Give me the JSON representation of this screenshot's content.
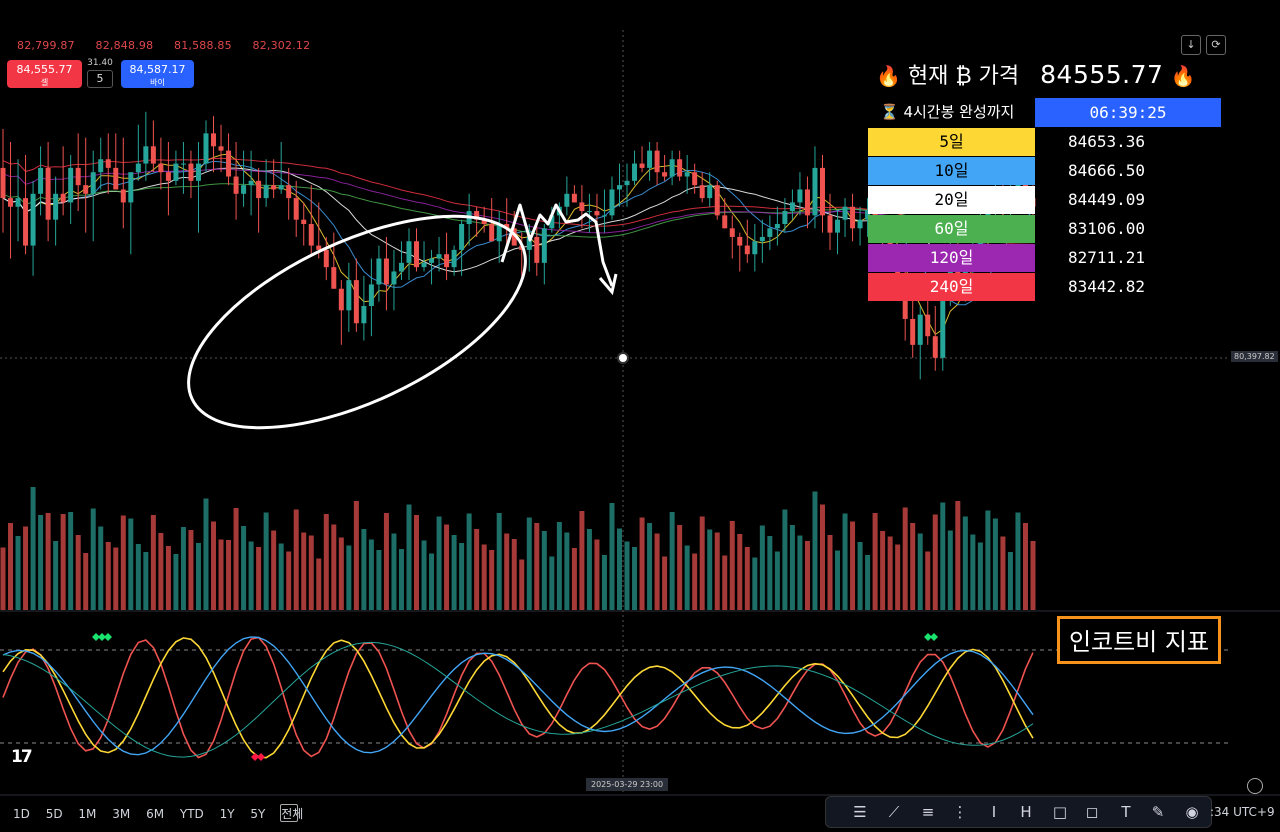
{
  "header": {
    "ohlc": [
      "82,799.87",
      "82,848.98",
      "81,588.85",
      "82,302.12"
    ],
    "sell_price": "84,555.77",
    "sell_label": "셀",
    "buy_price": "84,587.17",
    "buy_label": "바이",
    "spread": "31.40",
    "quantity": "5",
    "download_icon": "arrow-down-icon",
    "refresh_icon": "refresh-icon"
  },
  "overlay": {
    "title": "현재 ₿ 가격",
    "price": "84555.77",
    "fire": "🔥",
    "timer_label": "⏳ 4시간봉 완성까지",
    "timer_value": "06:39:25",
    "moving_averages": [
      {
        "label": "5일",
        "value": "84653.36",
        "color": "#fdd835",
        "text_color": "#000000"
      },
      {
        "label": "10일",
        "value": "84666.50",
        "color": "#42a5f5",
        "text_color": "#000000"
      },
      {
        "label": "20일",
        "value": "84449.09",
        "color": "#ffffff",
        "text_color": "#000000"
      },
      {
        "label": "60일",
        "value": "83106.00",
        "color": "#4caf50",
        "text_color": "#ffffff"
      },
      {
        "label": "120일",
        "value": "82711.21",
        "color": "#9c27b0",
        "text_color": "#ffffff"
      },
      {
        "label": "240일",
        "value": "83442.82",
        "color": "#f23645",
        "text_color": "#ffffff"
      }
    ]
  },
  "axis": {
    "price_tag": "80,397.82",
    "date_tag": "2025-03-29 23:00"
  },
  "indicator_label": "인코트비 지표",
  "bottom": {
    "ranges": [
      "1D",
      "5D",
      "1M",
      "3M",
      "6M",
      "YTD",
      "1Y",
      "5Y",
      "전체"
    ],
    "clock": ":34 UTC+9",
    "tools": [
      "list-icon",
      "line-icon",
      "fib-icon",
      "pattern-icon",
      "text-cursor-icon",
      "measure-icon",
      "rectangle-icon",
      "callout-icon",
      "text-icon",
      "brush-icon",
      "eye-icon"
    ]
  },
  "chart_data": {
    "type": "line",
    "candles": [
      [
        0,
        86.0,
        86.9,
        84.5,
        85.3
      ],
      [
        1,
        85.3,
        86.6,
        83.9,
        85.1
      ],
      [
        2,
        85.1,
        86.2,
        84.3,
        85.3
      ],
      [
        3,
        85.3,
        86.3,
        84.0,
        84.2
      ],
      [
        4,
        84.2,
        85.7,
        83.5,
        85.4
      ],
      [
        5,
        85.4,
        86.5,
        84.9,
        86.0
      ],
      [
        6,
        86.0,
        86.6,
        84.3,
        84.8
      ],
      [
        7,
        84.8,
        85.8,
        84.2,
        85.4
      ],
      [
        8,
        85.4,
        86.5,
        84.9,
        85.2
      ],
      [
        9,
        85.2,
        86.3,
        84.7,
        86.0
      ],
      [
        10,
        86.0,
        86.8,
        85.0,
        85.6
      ],
      [
        11,
        85.6,
        86.7,
        84.5,
        85.4
      ],
      [
        12,
        85.4,
        86.4,
        84.3,
        85.9
      ],
      [
        13,
        85.9,
        86.7,
        85.5,
        86.2
      ],
      [
        14,
        86.2,
        86.8,
        85.4,
        86.0
      ],
      [
        15,
        86.0,
        86.8,
        85.5,
        85.5
      ],
      [
        16,
        85.5,
        86.7,
        84.6,
        85.2
      ],
      [
        17,
        85.2,
        85.9,
        84.0,
        85.9
      ],
      [
        18,
        85.9,
        87.0,
        85.7,
        86.1
      ],
      [
        19,
        86.1,
        87.3,
        85.7,
        86.5
      ],
      [
        20,
        86.5,
        87.1,
        85.9,
        86.1
      ],
      [
        21,
        86.1,
        86.7,
        85.5,
        85.9
      ],
      [
        22,
        85.9,
        86.6,
        84.9,
        85.7
      ],
      [
        23,
        85.7,
        86.4,
        85.6,
        86.1
      ],
      [
        24,
        86.1,
        86.6,
        85.4,
        86.1
      ],
      [
        25,
        86.1,
        86.4,
        85.3,
        85.7
      ],
      [
        26,
        85.7,
        86.6,
        84.5,
        86.1
      ],
      [
        27,
        86.1,
        87.1,
        85.9,
        86.8
      ],
      [
        28,
        86.8,
        87.2,
        85.9,
        86.5
      ],
      [
        29,
        86.5,
        87.0,
        85.9,
        86.4
      ],
      [
        30,
        86.4,
        86.8,
        85.6,
        85.8
      ],
      [
        31,
        85.8,
        86.6,
        84.8,
        85.4
      ],
      [
        32,
        85.4,
        86.4,
        85.1,
        85.6
      ],
      [
        33,
        85.6,
        86.4,
        84.9,
        85.7
      ],
      [
        34,
        85.7,
        86.0,
        84.5,
        85.3
      ],
      [
        35,
        85.3,
        86.2,
        85.1,
        85.6
      ],
      [
        36,
        85.6,
        86.2,
        85.3,
        85.5
      ],
      [
        37,
        85.5,
        86.6,
        85.4,
        85.6
      ],
      [
        38,
        85.6,
        86.0,
        84.8,
        85.3
      ],
      [
        39,
        85.3,
        85.7,
        84.4,
        84.8
      ],
      [
        40,
        84.8,
        85.2,
        84.2,
        84.7
      ],
      [
        41,
        84.7,
        85.6,
        84.0,
        84.2
      ],
      [
        42,
        84.2,
        85.2,
        83.9,
        84.1
      ],
      [
        43,
        84.1,
        84.4,
        83.4,
        83.7
      ],
      [
        44,
        83.7,
        84.5,
        83.2,
        83.2
      ],
      [
        45,
        83.2,
        83.4,
        81.9,
        82.7
      ],
      [
        46,
        82.7,
        83.8,
        82.2,
        83.4
      ],
      [
        47,
        83.4,
        83.9,
        82.2,
        82.4
      ],
      [
        48,
        82.4,
        83.5,
        82.0,
        82.8
      ],
      [
        49,
        82.8,
        83.9,
        82.1,
        83.3
      ],
      [
        50,
        83.3,
        84.2,
        82.9,
        83.9
      ],
      [
        51,
        83.9,
        84.4,
        82.7,
        83.3
      ],
      [
        52,
        83.3,
        84.1,
        82.7,
        83.6
      ],
      [
        53,
        83.6,
        84.3,
        83.4,
        83.8
      ],
      [
        54,
        83.8,
        84.6,
        83.4,
        84.3
      ],
      [
        55,
        84.3,
        84.6,
        83.6,
        83.7
      ],
      [
        56,
        83.7,
        84.3,
        83.6,
        83.8
      ],
      [
        57,
        83.8,
        84.1,
        83.3,
        83.9
      ],
      [
        58,
        83.9,
        84.4,
        83.6,
        84.0
      ],
      [
        59,
        84.0,
        84.5,
        83.4,
        83.7
      ],
      [
        60,
        83.7,
        84.2,
        83.5,
        84.1
      ],
      [
        61,
        84.1,
        84.8,
        83.5,
        84.7
      ],
      [
        62,
        84.7,
        85.4,
        84.2,
        85.0
      ],
      [
        63,
        85.0,
        85.1,
        84.4,
        84.8
      ],
      [
        64,
        84.8,
        85.1,
        84.5,
        84.7
      ],
      [
        65,
        84.7,
        85.3,
        84.3,
        84.3
      ],
      [
        66,
        84.3,
        85.0,
        83.8,
        84.7
      ],
      [
        67,
        84.7,
        85.3,
        84.2,
        84.6
      ],
      [
        68,
        84.6,
        85.0,
        84.2,
        84.2
      ],
      [
        69,
        84.2,
        84.5,
        83.4,
        84.1
      ],
      [
        70,
        84.1,
        84.7,
        83.6,
        84.4
      ],
      [
        71,
        84.4,
        84.8,
        83.5,
        83.8
      ],
      [
        72,
        83.8,
        84.7,
        83.3,
        84.6
      ],
      [
        73,
        84.6,
        85.1,
        84.5,
        84.9
      ],
      [
        74,
        84.9,
        85.2,
        84.6,
        85.1
      ],
      [
        75,
        85.1,
        85.8,
        84.9,
        85.4
      ],
      [
        76,
        85.4,
        85.6,
        85.2,
        85.2
      ],
      [
        77,
        85.2,
        85.6,
        84.6,
        85.0
      ],
      [
        78,
        85.0,
        85.4,
        84.5,
        85.0
      ],
      [
        79,
        85.0,
        85.4,
        84.6,
        84.9
      ],
      [
        80,
        84.9,
        85.5,
        84.5,
        84.9
      ],
      [
        81,
        84.9,
        85.8,
        84.8,
        85.5
      ],
      [
        82,
        85.5,
        86.1,
        85.1,
        85.6
      ],
      [
        83,
        85.6,
        86.1,
        85.1,
        85.7
      ],
      [
        84,
        85.7,
        86.4,
        85.6,
        86.1
      ],
      [
        85,
        86.1,
        86.5,
        85.9,
        86.0
      ],
      [
        86,
        86.0,
        86.6,
        85.7,
        86.4
      ],
      [
        87,
        86.4,
        86.6,
        85.6,
        85.9
      ],
      [
        88,
        85.9,
        86.3,
        85.7,
        85.8
      ],
      [
        89,
        85.8,
        86.4,
        85.6,
        86.2
      ],
      [
        90,
        86.2,
        86.4,
        85.7,
        85.8
      ],
      [
        91,
        85.8,
        86.3,
        85.4,
        85.9
      ],
      [
        92,
        85.9,
        86.1,
        85.4,
        85.6
      ],
      [
        93,
        85.6,
        85.9,
        85.2,
        85.3
      ],
      [
        94,
        85.3,
        85.9,
        85.1,
        85.6
      ],
      [
        95,
        85.6,
        85.7,
        84.8,
        84.9
      ],
      [
        96,
        84.9,
        85.3,
        84.6,
        84.6
      ],
      [
        97,
        84.6,
        84.9,
        83.9,
        84.4
      ],
      [
        98,
        84.4,
        84.5,
        83.6,
        84.2
      ],
      [
        99,
        84.2,
        84.8,
        83.8,
        84.0
      ],
      [
        100,
        84.0,
        84.7,
        83.6,
        84.3
      ],
      [
        101,
        84.3,
        84.8,
        83.8,
        84.4
      ],
      [
        102,
        84.4,
        84.9,
        84.1,
        84.6
      ],
      [
        103,
        84.6,
        85.1,
        84.2,
        84.7
      ],
      [
        104,
        84.7,
        85.3,
        84.5,
        85.0
      ],
      [
        105,
        85.0,
        85.5,
        84.8,
        85.2
      ],
      [
        106,
        85.2,
        85.9,
        84.9,
        85.5
      ],
      [
        107,
        85.5,
        85.8,
        84.6,
        84.9
      ],
      [
        108,
        84.9,
        86.5,
        84.6,
        86.0
      ],
      [
        109,
        86.0,
        86.3,
        84.5,
        84.9
      ],
      [
        110,
        84.9,
        85.4,
        84.1,
        84.5
      ],
      [
        111,
        84.5,
        85.0,
        84.0,
        84.8
      ],
      [
        112,
        84.8,
        85.3,
        84.4,
        85.1
      ],
      [
        113,
        85.1,
        85.4,
        84.3,
        84.6
      ],
      [
        114,
        84.6,
        85.1,
        84.2,
        84.8
      ],
      [
        115,
        84.8,
        85.3,
        84.4,
        85.0
      ],
      [
        116,
        85.0,
        85.2,
        84.3,
        84.6
      ],
      [
        117,
        84.6,
        84.9,
        84.1,
        84.4
      ],
      [
        118,
        84.4,
        84.7,
        83.7,
        83.9
      ],
      [
        119,
        83.9,
        84.1,
        83.0,
        83.2
      ],
      [
        120,
        83.2,
        83.7,
        82.0,
        82.5
      ],
      [
        121,
        82.5,
        83.2,
        81.6,
        81.9
      ],
      [
        122,
        81.9,
        82.8,
        81.1,
        82.6
      ],
      [
        123,
        82.6,
        83.3,
        81.9,
        82.1
      ],
      [
        124,
        82.1,
        82.8,
        81.3,
        81.6
      ],
      [
        125,
        81.6,
        83.4,
        81.3,
        83.1
      ],
      [
        126,
        83.1,
        84.3,
        82.8,
        84.0
      ],
      [
        127,
        84.0,
        84.6,
        83.2,
        83.4
      ],
      [
        128,
        83.4,
        84.2,
        82.9,
        83.9
      ],
      [
        129,
        83.9,
        84.6,
        83.5,
        84.2
      ],
      [
        130,
        84.2,
        85.0,
        83.9,
        84.7
      ],
      [
        131,
        84.7,
        85.3,
        84.3,
        85.0
      ],
      [
        132,
        85.0,
        85.8,
        84.8,
        85.5
      ],
      [
        133,
        85.5,
        85.9,
        84.9,
        85.2
      ],
      [
        134,
        85.2,
        85.6,
        84.9,
        85.4
      ],
      [
        135,
        85.4,
        85.9,
        85.1,
        85.7
      ],
      [
        136,
        85.7,
        86.0,
        85.2,
        85.3
      ],
      [
        137,
        85.3,
        85.6,
        84.9,
        85.1
      ]
    ],
    "ma_series": [
      {
        "name": "5일",
        "color": "#fdd835",
        "period": 5
      },
      {
        "name": "10일",
        "color": "#42a5f5",
        "period": 10
      },
      {
        "name": "20일",
        "color": "#ffffff",
        "period": 20
      },
      {
        "name": "60일",
        "color": "#4caf50",
        "period": 60
      },
      {
        "name": "120일",
        "color": "#9c27b0",
        "period": 120
      },
      {
        "name": "240일",
        "color": "#f23645",
        "period": 240
      }
    ],
    "volume_bars": 138,
    "oscillator": {
      "upper_band": 80,
      "lower_band": 20
    }
  }
}
